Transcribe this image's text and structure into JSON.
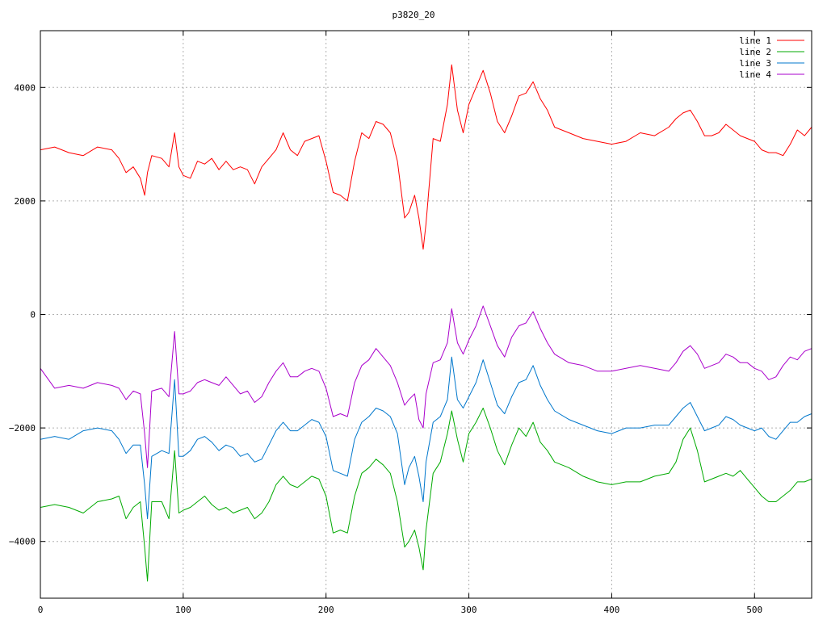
{
  "chart_data": {
    "type": "line",
    "title": "p3820_20",
    "xlim": [
      0,
      540
    ],
    "ylim": [
      -5000,
      5000
    ],
    "x_ticks": [
      0,
      100,
      200,
      300,
      400,
      500
    ],
    "x_tick_labels": [
      "0",
      "100",
      "200",
      "300",
      "400",
      "500"
    ],
    "y_ticks": [
      -4000,
      -2000,
      0,
      2000,
      4000
    ],
    "y_tick_labels": [
      "−4000",
      "−2000",
      "0",
      "2000",
      "4000"
    ],
    "grid": true,
    "legend_position": "top-right",
    "x": [
      0,
      10,
      20,
      30,
      40,
      50,
      55,
      60,
      65,
      70,
      73,
      75,
      78,
      85,
      90,
      94,
      97,
      100,
      105,
      110,
      115,
      120,
      125,
      130,
      135,
      140,
      145,
      150,
      155,
      160,
      165,
      170,
      175,
      180,
      185,
      190,
      195,
      200,
      205,
      210,
      215,
      220,
      225,
      230,
      235,
      240,
      245,
      250,
      255,
      258,
      262,
      265,
      268,
      270,
      275,
      280,
      285,
      288,
      292,
      296,
      300,
      305,
      310,
      315,
      320,
      325,
      330,
      335,
      340,
      345,
      350,
      355,
      360,
      370,
      380,
      390,
      400,
      410,
      420,
      430,
      440,
      445,
      450,
      455,
      460,
      465,
      470,
      475,
      480,
      485,
      490,
      495,
      500,
      505,
      510,
      515,
      520,
      525,
      530,
      535,
      540
    ],
    "series": [
      {
        "name": "line 1",
        "color": "#ff0000",
        "values": [
          2900,
          2950,
          2850,
          2800,
          2950,
          2900,
          2750,
          2500,
          2600,
          2400,
          2100,
          2500,
          2800,
          2750,
          2600,
          3200,
          2600,
          2450,
          2400,
          2700,
          2650,
          2750,
          2550,
          2700,
          2550,
          2600,
          2550,
          2300,
          2600,
          2750,
          2900,
          3200,
          2900,
          2800,
          3050,
          3100,
          3150,
          2700,
          2150,
          2100,
          2000,
          2700,
          3200,
          3100,
          3400,
          3350,
          3200,
          2700,
          1700,
          1800,
          2100,
          1700,
          1150,
          1600,
          3100,
          3050,
          3700,
          4400,
          3600,
          3200,
          3700,
          4000,
          4300,
          3900,
          3400,
          3200,
          3500,
          3850,
          3900,
          4100,
          3800,
          3600,
          3300,
          3200,
          3100,
          3050,
          3000,
          3050,
          3200,
          3150,
          3300,
          3450,
          3550,
          3600,
          3400,
          3150,
          3150,
          3200,
          3350,
          3250,
          3150,
          3100,
          3050,
          2900,
          2850,
          2850,
          2800,
          3000,
          3250,
          3150,
          3300
        ]
      },
      {
        "name": "line 2",
        "color": "#00aa00",
        "values": [
          -3400,
          -3350,
          -3400,
          -3500,
          -3300,
          -3250,
          -3200,
          -3600,
          -3400,
          -3300,
          -4100,
          -4700,
          -3300,
          -3300,
          -3600,
          -2400,
          -3500,
          -3450,
          -3400,
          -3300,
          -3200,
          -3350,
          -3450,
          -3400,
          -3500,
          -3450,
          -3400,
          -3600,
          -3500,
          -3300,
          -3000,
          -2850,
          -3000,
          -3050,
          -2950,
          -2850,
          -2900,
          -3200,
          -3850,
          -3800,
          -3850,
          -3200,
          -2800,
          -2700,
          -2550,
          -2650,
          -2800,
          -3300,
          -4100,
          -4000,
          -3800,
          -4100,
          -4500,
          -3800,
          -2800,
          -2600,
          -2100,
          -1700,
          -2200,
          -2600,
          -2100,
          -1900,
          -1650,
          -2000,
          -2400,
          -2650,
          -2300,
          -2000,
          -2150,
          -1900,
          -2250,
          -2400,
          -2600,
          -2700,
          -2850,
          -2950,
          -3000,
          -2950,
          -2950,
          -2850,
          -2800,
          -2600,
          -2200,
          -2000,
          -2400,
          -2950,
          -2900,
          -2850,
          -2800,
          -2850,
          -2750,
          -2900,
          -3050,
          -3200,
          -3300,
          -3300,
          -3200,
          -3100,
          -2950,
          -2950,
          -2900
        ]
      },
      {
        "name": "line 3",
        "color": "#0077cc",
        "values": [
          -2200,
          -2150,
          -2200,
          -2050,
          -2000,
          -2050,
          -2200,
          -2450,
          -2300,
          -2300,
          -3000,
          -3600,
          -2500,
          -2400,
          -2450,
          -1150,
          -2500,
          -2500,
          -2400,
          -2200,
          -2150,
          -2250,
          -2400,
          -2300,
          -2350,
          -2500,
          -2450,
          -2600,
          -2550,
          -2300,
          -2050,
          -1900,
          -2050,
          -2050,
          -1950,
          -1850,
          -1900,
          -2150,
          -2750,
          -2800,
          -2850,
          -2200,
          -1900,
          -1800,
          -1650,
          -1700,
          -1800,
          -2100,
          -3000,
          -2700,
          -2500,
          -2850,
          -3300,
          -2600,
          -1900,
          -1800,
          -1500,
          -750,
          -1500,
          -1650,
          -1450,
          -1200,
          -800,
          -1200,
          -1600,
          -1750,
          -1450,
          -1200,
          -1150,
          -900,
          -1250,
          -1500,
          -1700,
          -1850,
          -1950,
          -2050,
          -2100,
          -2000,
          -2000,
          -1950,
          -1950,
          -1800,
          -1650,
          -1550,
          -1800,
          -2050,
          -2000,
          -1950,
          -1800,
          -1850,
          -1950,
          -2000,
          -2050,
          -2000,
          -2150,
          -2200,
          -2050,
          -1900,
          -1900,
          -1800,
          -1750
        ]
      },
      {
        "name": "line 4",
        "color": "#aa00cc",
        "values": [
          -950,
          -1300,
          -1250,
          -1300,
          -1200,
          -1250,
          -1300,
          -1500,
          -1350,
          -1400,
          -2100,
          -2700,
          -1350,
          -1300,
          -1450,
          -300,
          -1400,
          -1400,
          -1350,
          -1200,
          -1150,
          -1200,
          -1250,
          -1100,
          -1250,
          -1400,
          -1350,
          -1550,
          -1450,
          -1200,
          -1000,
          -850,
          -1100,
          -1100,
          -1000,
          -950,
          -1000,
          -1300,
          -1800,
          -1750,
          -1800,
          -1200,
          -900,
          -800,
          -600,
          -750,
          -900,
          -1200,
          -1600,
          -1500,
          -1400,
          -1850,
          -2000,
          -1400,
          -850,
          -800,
          -500,
          100,
          -500,
          -700,
          -450,
          -200,
          150,
          -200,
          -550,
          -750,
          -400,
          -200,
          -150,
          50,
          -250,
          -500,
          -700,
          -850,
          -900,
          -1000,
          -1000,
          -950,
          -900,
          -950,
          -1000,
          -850,
          -650,
          -550,
          -700,
          -950,
          -900,
          -850,
          -700,
          -750,
          -850,
          -850,
          -950,
          -1000,
          -1150,
          -1100,
          -900,
          -750,
          -800,
          -650,
          -600
        ]
      }
    ]
  }
}
